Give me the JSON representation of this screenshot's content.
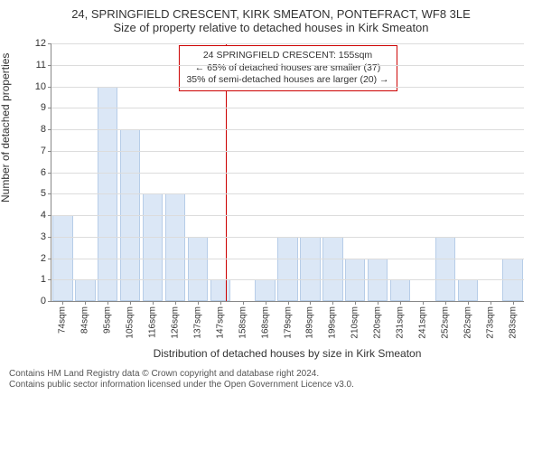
{
  "header": {
    "address_line": "24, SPRINGFIELD CRESCENT, KIRK SMEATON, PONTEFRACT, WF8 3LE",
    "subtitle": "Size of property relative to detached houses in Kirk Smeaton"
  },
  "chart": {
    "type": "bar",
    "ylabel": "Number of detached properties",
    "xlabel": "Distribution of detached houses by size in Kirk Smeaton",
    "ylim": [
      0,
      12
    ],
    "ytick_step": 1,
    "xtick_labels": [
      "74sqm",
      "84sqm",
      "95sqm",
      "105sqm",
      "116sqm",
      "126sqm",
      "137sqm",
      "147sqm",
      "158sqm",
      "168sqm",
      "179sqm",
      "189sqm",
      "199sqm",
      "210sqm",
      "220sqm",
      "231sqm",
      "241sqm",
      "252sqm",
      "262sqm",
      "273sqm",
      "283sqm"
    ],
    "values": [
      4,
      1,
      10,
      8,
      5,
      5,
      3,
      1,
      0,
      1,
      3,
      3,
      3,
      2,
      2,
      1,
      0,
      3,
      1,
      0,
      2
    ],
    "bar_fill": "#dbe7f6",
    "bar_stroke": "#b7cde8",
    "grid_color": "#dcdcdc",
    "axis_color": "#888888",
    "background_color": "#ffffff",
    "tick_fontsize": 11,
    "label_fontsize": 12,
    "marker": {
      "line_color": "#cc0000",
      "position_index_after": 7,
      "callout": {
        "line1": "24 SPRINGFIELD CRESCENT: 155sqm",
        "line2": "← 65% of detached houses are smaller (37)",
        "line3": "35% of semi-detached houses are larger (20) →"
      }
    }
  },
  "footer": {
    "line1": "Contains HM Land Registry data © Crown copyright and database right 2024.",
    "line2": "Contains public sector information licensed under the Open Government Licence v3.0."
  }
}
